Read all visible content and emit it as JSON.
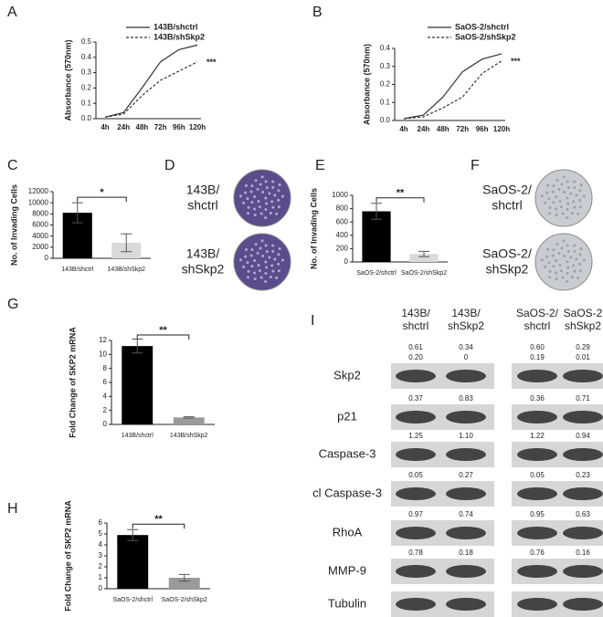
{
  "chart_data": [
    {
      "type": "line",
      "label": "A",
      "ylabel": "Absorbance (570nm)",
      "annotation": "***",
      "categories": [
        "4h",
        "24h",
        "48h",
        "72h",
        "96h",
        "120h"
      ],
      "ylim": [
        0,
        0.5
      ],
      "yticks": [
        {
          "value": 0,
          "label": "0.0"
        },
        {
          "value": 0.1,
          "label": "0.1"
        },
        {
          "value": 0.2,
          "label": "0.2"
        },
        {
          "value": 0.3,
          "label": "0.3"
        },
        {
          "value": 0.4,
          "label": "0.4"
        },
        {
          "value": 0.5,
          "label": "0.5"
        }
      ],
      "series": [
        {
          "name": "143B/shctrl",
          "color": "#333333",
          "dash": false,
          "values": [
            0.01,
            0.04,
            0.2,
            0.37,
            0.45,
            0.48
          ]
        },
        {
          "name": "143B/shSkp2",
          "color": "#333333",
          "dash": true,
          "values": [
            0.01,
            0.03,
            0.15,
            0.25,
            0.31,
            0.37
          ]
        }
      ]
    },
    {
      "type": "line",
      "label": "B",
      "ylabel": "Absorbance (570nm)",
      "annotation": "***",
      "categories": [
        "4h",
        "24h",
        "48h",
        "72h",
        "96h",
        "120h"
      ],
      "ylim": [
        0,
        0.4
      ],
      "yticks": [
        {
          "value": 0,
          "label": "0.0"
        },
        {
          "value": 0.1,
          "label": "0.1"
        },
        {
          "value": 0.2,
          "label": "0.2"
        },
        {
          "value": 0.3,
          "label": "0.3"
        },
        {
          "value": 0.4,
          "label": "0.4"
        }
      ],
      "series": [
        {
          "name": "SaOS-2/shctrl",
          "color": "#333333",
          "dash": false,
          "values": [
            0.01,
            0.03,
            0.13,
            0.27,
            0.34,
            0.37
          ]
        },
        {
          "name": "SaOS-2/shSkp2",
          "color": "#333333",
          "dash": true,
          "values": [
            0.01,
            0.02,
            0.07,
            0.13,
            0.26,
            0.33
          ]
        }
      ]
    },
    {
      "type": "bar",
      "label": "C",
      "ylabel": "No. of Invading Cells",
      "annotation": "*",
      "categories": [
        "143B/shctrl",
        "143B/shSkp2"
      ],
      "values": [
        8200,
        2800
      ],
      "errors": [
        1800,
        1600
      ],
      "colors": [
        "#000000",
        "#d9d9d9"
      ],
      "ylim": [
        0,
        12000
      ],
      "yticks": [
        0,
        2000,
        4000,
        6000,
        8000,
        10000,
        12000
      ]
    },
    {
      "type": "bar",
      "label": "E",
      "ylabel": "No. of Invading Cells",
      "annotation": "**",
      "categories": [
        "SaOS-2/shctrl",
        "SaOS-2/shSkp2"
      ],
      "values": [
        760,
        120
      ],
      "errors": [
        120,
        40
      ],
      "colors": [
        "#000000",
        "#d9d9d9"
      ],
      "ylim": [
        0,
        1000
      ],
      "yticks": [
        0,
        200,
        400,
        600,
        800,
        1000
      ]
    },
    {
      "type": "bar",
      "label": "G",
      "ylabel": "Fold Change of SKP2 mRNA",
      "annotation": "**",
      "categories": [
        "143B/shctrl",
        "143B/shSkp2"
      ],
      "values": [
        11.2,
        1.0
      ],
      "errors": [
        1.0,
        0.1
      ],
      "colors": [
        "#000000",
        "#9a9a9a"
      ],
      "ylim": [
        0,
        12
      ],
      "yticks": [
        0,
        2,
        4,
        6,
        8,
        10,
        12
      ]
    },
    {
      "type": "bar",
      "label": "H",
      "ylabel": "Fold Change of SKP2 mRNA",
      "annotation": "**",
      "categories": [
        "SaOS-2/shctrl",
        "SaOS-2/shSkp2"
      ],
      "values": [
        4.9,
        1.0
      ],
      "errors": [
        0.5,
        0.3
      ],
      "colors": [
        "#000000",
        "#9a9a9a"
      ],
      "ylim": [
        0,
        6
      ],
      "yticks": [
        0,
        1,
        2,
        3,
        4,
        5,
        6
      ]
    }
  ],
  "images": [
    {
      "label": "D",
      "captions": [
        [
          "143B/",
          "shctrl"
        ],
        [
          "143B/",
          "shSkp2"
        ]
      ]
    },
    {
      "label": "F",
      "captions": [
        [
          "SaOS-2/",
          "shctrl"
        ],
        [
          "SaOS-2/",
          "shSkp2"
        ]
      ]
    }
  ],
  "blot": {
    "label": "I",
    "columns": [
      [
        "143B/",
        "shctrl"
      ],
      [
        "143B/",
        "shSkp2"
      ],
      [
        "SaOS-2/",
        "shctrl"
      ],
      [
        "SaOS-2",
        "shSkp2"
      ]
    ],
    "rows": [
      {
        "name": "Skp2",
        "ratios": [
          [
            "0.61",
            "0.34",
            "0.60",
            "0.29"
          ],
          [
            "0.20",
            "0",
            "0.19",
            "0.01"
          ]
        ]
      },
      {
        "name": "p21",
        "ratios": [
          [
            "0.37",
            "0.83",
            "0.36",
            "0.71"
          ]
        ]
      },
      {
        "name": "Caspase-3",
        "ratios": [
          [
            "1.25",
            "1.10",
            "1.22",
            "0.94"
          ]
        ]
      },
      {
        "name": "cl Caspase-3",
        "ratios": [
          [
            "0.05",
            "0.27",
            "0.05",
            "0.23"
          ]
        ]
      },
      {
        "name": "RhoA",
        "ratios": [
          [
            "0.97",
            "0.74",
            "0.95",
            "0.63"
          ]
        ]
      },
      {
        "name": "MMP-9",
        "ratios": [
          [
            "0.78",
            "0.18",
            "0.76",
            "0.16"
          ]
        ]
      },
      {
        "name": "Tubulin",
        "ratios": []
      }
    ]
  }
}
